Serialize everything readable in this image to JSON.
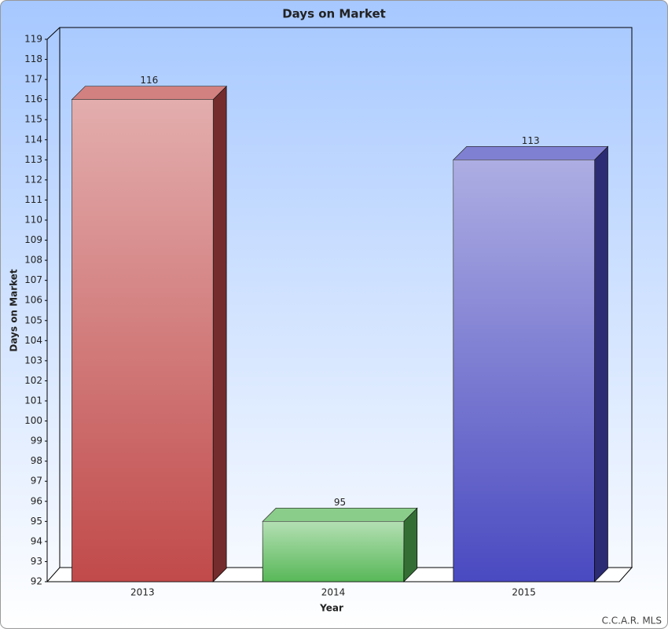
{
  "chart_data": {
    "type": "bar3d",
    "title": "Days on Market",
    "x_label": "Year",
    "y_label": "Days on Market",
    "source": "C.C.A.R. MLS",
    "categories": [
      "2013",
      "2014",
      "2015"
    ],
    "values": [
      116,
      95,
      113
    ],
    "colors": [
      "#c14a4a",
      "#58b858",
      "#4a4ac1"
    ],
    "ylim": [
      92,
      119
    ],
    "yticks": [
      92,
      93,
      94,
      95,
      96,
      97,
      98,
      99,
      100,
      101,
      102,
      103,
      104,
      105,
      106,
      107,
      108,
      109,
      110,
      111,
      112,
      113,
      114,
      115,
      116,
      117,
      118,
      119
    ]
  }
}
